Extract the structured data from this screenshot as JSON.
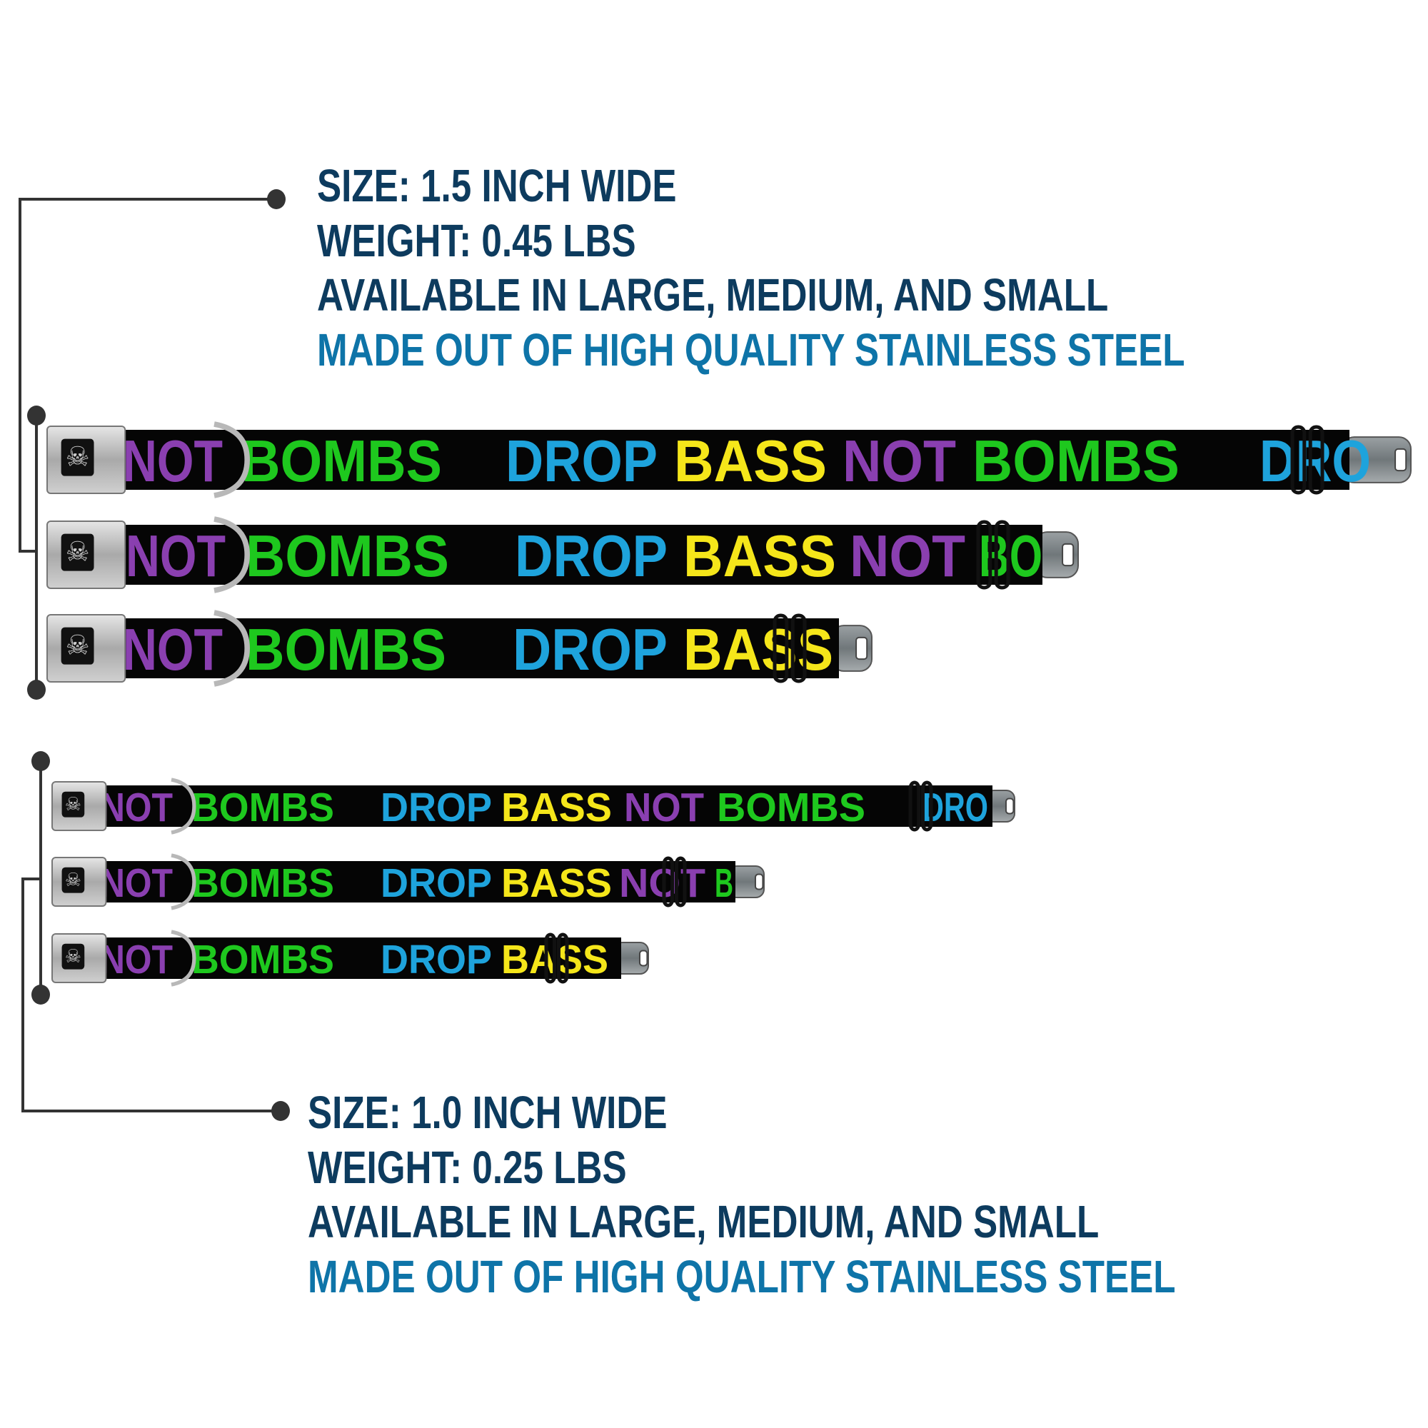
{
  "colors": {
    "dark_text": "#0d3b5e",
    "accent_text": "#0e74a8",
    "connector": "#333333",
    "purple": "#8a3fb0",
    "green": "#1ec81e",
    "blue": "#1ea3dc",
    "yellow": "#f5e61a",
    "strap": "#050505"
  },
  "wide_spec": {
    "size": "SIZE: 1.5 INCH WIDE",
    "weight": "WEIGHT: 0.45 LBS",
    "availability": "AVAILABLE IN LARGE, MEDIUM, AND SMALL",
    "material": "MADE OUT OF HIGH QUALITY STAINLESS STEEL"
  },
  "narrow_spec": {
    "size": "SIZE: 1.0 INCH WIDE",
    "weight": "WEIGHT: 0.25 LBS",
    "availability": "AVAILABLE IN LARGE, MEDIUM, AND SMALL",
    "material": "MADE OUT OF HIGH QUALITY STAINLESS STEEL"
  },
  "buckle_icon": "bone-icon",
  "collars": [
    {
      "group": "1.5 inch",
      "size": "large",
      "words": [
        {
          "t": "NOT",
          "c": "purple"
        },
        {
          "t": "BOMBS",
          "c": "green"
        },
        {
          "t": "DROP",
          "c": "blue"
        },
        {
          "t": "BASS",
          "c": "yellow"
        },
        {
          "t": "NOT",
          "c": "purple"
        },
        {
          "t": "BOMBS",
          "c": "green"
        },
        {
          "t": "DRO",
          "c": "blue"
        }
      ]
    },
    {
      "group": "1.5 inch",
      "size": "medium",
      "words": [
        {
          "t": "NOT",
          "c": "purple"
        },
        {
          "t": "BOMBS",
          "c": "green"
        },
        {
          "t": "DROP",
          "c": "blue"
        },
        {
          "t": "BASS",
          "c": "yellow"
        },
        {
          "t": "NOT",
          "c": "purple"
        },
        {
          "t": "BO",
          "c": "green"
        }
      ]
    },
    {
      "group": "1.5 inch",
      "size": "small",
      "words": [
        {
          "t": "NOT",
          "c": "purple"
        },
        {
          "t": "BOMBS",
          "c": "green"
        },
        {
          "t": "DROP",
          "c": "blue"
        },
        {
          "t": "BASS",
          "c": "yellow"
        }
      ]
    },
    {
      "group": "1.0 inch",
      "size": "large",
      "words": [
        {
          "t": "NOT",
          "c": "purple"
        },
        {
          "t": "BOMBS",
          "c": "green"
        },
        {
          "t": "DROP",
          "c": "blue"
        },
        {
          "t": "BASS",
          "c": "yellow"
        },
        {
          "t": "NOT",
          "c": "purple"
        },
        {
          "t": "BOMBS",
          "c": "green"
        },
        {
          "t": "DRO",
          "c": "blue"
        }
      ]
    },
    {
      "group": "1.0 inch",
      "size": "medium",
      "words": [
        {
          "t": "NOT",
          "c": "purple"
        },
        {
          "t": "BOMBS",
          "c": "green"
        },
        {
          "t": "DROP",
          "c": "blue"
        },
        {
          "t": "BASS",
          "c": "yellow"
        },
        {
          "t": "NOT",
          "c": "purple"
        },
        {
          "t": "B",
          "c": "green"
        }
      ]
    },
    {
      "group": "1.0 inch",
      "size": "small",
      "words": [
        {
          "t": "NOT",
          "c": "purple"
        },
        {
          "t": "BOMBS",
          "c": "green"
        },
        {
          "t": "DROP",
          "c": "blue"
        },
        {
          "t": "BASS",
          "c": "yellow"
        }
      ]
    }
  ]
}
